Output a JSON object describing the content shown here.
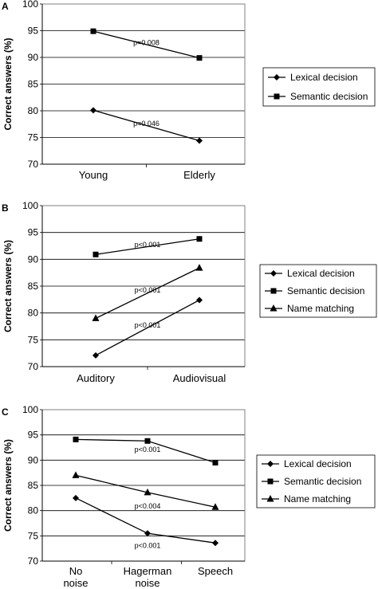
{
  "chart_data": [
    {
      "panel": "A",
      "type": "line",
      "ylabel": "Correct answers (%)",
      "ylim": [
        70,
        100
      ],
      "yticks": [
        "70",
        "75",
        "80",
        "85",
        "90",
        "95",
        "100"
      ],
      "categories": [
        "Young",
        "Elderly"
      ],
      "series": [
        {
          "name": "Lexical decision",
          "marker": "diamond",
          "values": [
            80.1,
            74.4
          ]
        },
        {
          "name": "Semantic decision",
          "marker": "square",
          "values": [
            94.9,
            89.9
          ]
        }
      ],
      "annotations": [
        {
          "text": "p=0.008",
          "x": 0.5,
          "y": 92.3
        },
        {
          "text": "p=0.046",
          "x": 0.5,
          "y": 77.2
        }
      ],
      "grid": true,
      "legend": "right"
    },
    {
      "panel": "B",
      "type": "line",
      "ylabel": "Correct answers (%)",
      "ylim": [
        70,
        100
      ],
      "yticks": [
        "70",
        "75",
        "80",
        "85",
        "90",
        "95",
        "100"
      ],
      "categories": [
        "Auditory",
        "Audiovisual"
      ],
      "series": [
        {
          "name": "Lexical decision",
          "marker": "diamond",
          "values": [
            72.1,
            82.4
          ]
        },
        {
          "name": "Semantic decision",
          "marker": "square",
          "values": [
            90.9,
            93.8
          ]
        },
        {
          "name": "Name matching",
          "marker": "triangle",
          "values": [
            79.0,
            88.4
          ]
        }
      ],
      "annotations": [
        {
          "text": "p<0.001",
          "x": 0.5,
          "y": 92.3
        },
        {
          "text": "p<0.001",
          "x": 0.5,
          "y": 83.8
        },
        {
          "text": "p<0.001",
          "x": 0.5,
          "y": 77.3
        }
      ],
      "grid": true,
      "legend": "right"
    },
    {
      "panel": "C",
      "type": "line",
      "ylabel": "Correct answers (%)",
      "ylim": [
        70,
        100
      ],
      "yticks": [
        "70",
        "75",
        "80",
        "85",
        "90",
        "95",
        "100"
      ],
      "categories": [
        "No noise",
        "Hagerman noise",
        "Speech"
      ],
      "series": [
        {
          "name": "Lexical decision",
          "marker": "diamond",
          "values": [
            82.5,
            75.5,
            73.6
          ]
        },
        {
          "name": "Semantic decision",
          "marker": "square",
          "values": [
            94.1,
            93.8,
            89.5
          ]
        },
        {
          "name": "Name matching",
          "marker": "triangle",
          "values": [
            87.0,
            83.6,
            80.7
          ]
        }
      ],
      "annotations": [
        {
          "text": "p<0.001",
          "x": 1,
          "y": 91.6
        },
        {
          "text": "p<0.004",
          "x": 1,
          "y": 80.4
        },
        {
          "text": "p<0.001",
          "x": 1,
          "y": 72.6
        }
      ],
      "grid": true,
      "legend": "right"
    }
  ],
  "colors": {
    "line": "#000000",
    "grid": "#000000",
    "background": "#ffffff",
    "frame": "#808080"
  }
}
